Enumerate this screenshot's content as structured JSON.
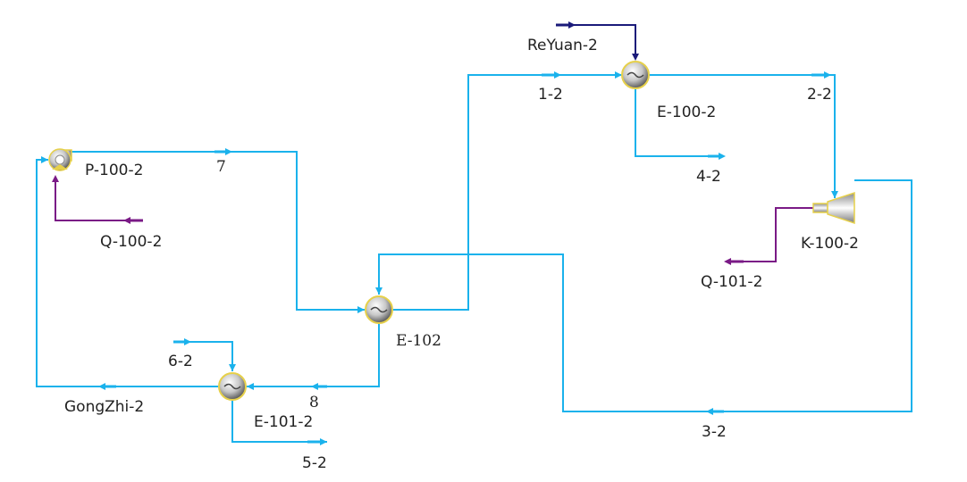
{
  "colors": {
    "material_stream": "#1ab2ec",
    "energy_out": "#7a1a86",
    "energy_in": "#1a1a7a",
    "equipment_outline": "#e6d04a",
    "label_text": "#222222"
  },
  "equipment": {
    "pump": {
      "label": "P-100-2",
      "icon": "pump-icon"
    },
    "heater": {
      "label": "E-100-2",
      "icon": "heat-exchanger-icon"
    },
    "exchanger_main": {
      "label": "E-102",
      "icon": "heat-exchanger-icon"
    },
    "cooler": {
      "label": "E-101-2",
      "icon": "heat-exchanger-icon"
    },
    "expander": {
      "label": "K-100-2",
      "icon": "expander-icon"
    }
  },
  "streams": {
    "s7": "7",
    "s1_2": "1-2",
    "s2_2": "2-2",
    "s3_2": "3-2",
    "s4_2": "4-2",
    "s5_2": "5-2",
    "s6_2": "6-2",
    "s8": "8",
    "gongzhi": "GongZhi-2"
  },
  "energy_streams": {
    "q100": "Q-100-2",
    "q101": "Q-101-2",
    "reyuan": "ReYuan-2"
  }
}
